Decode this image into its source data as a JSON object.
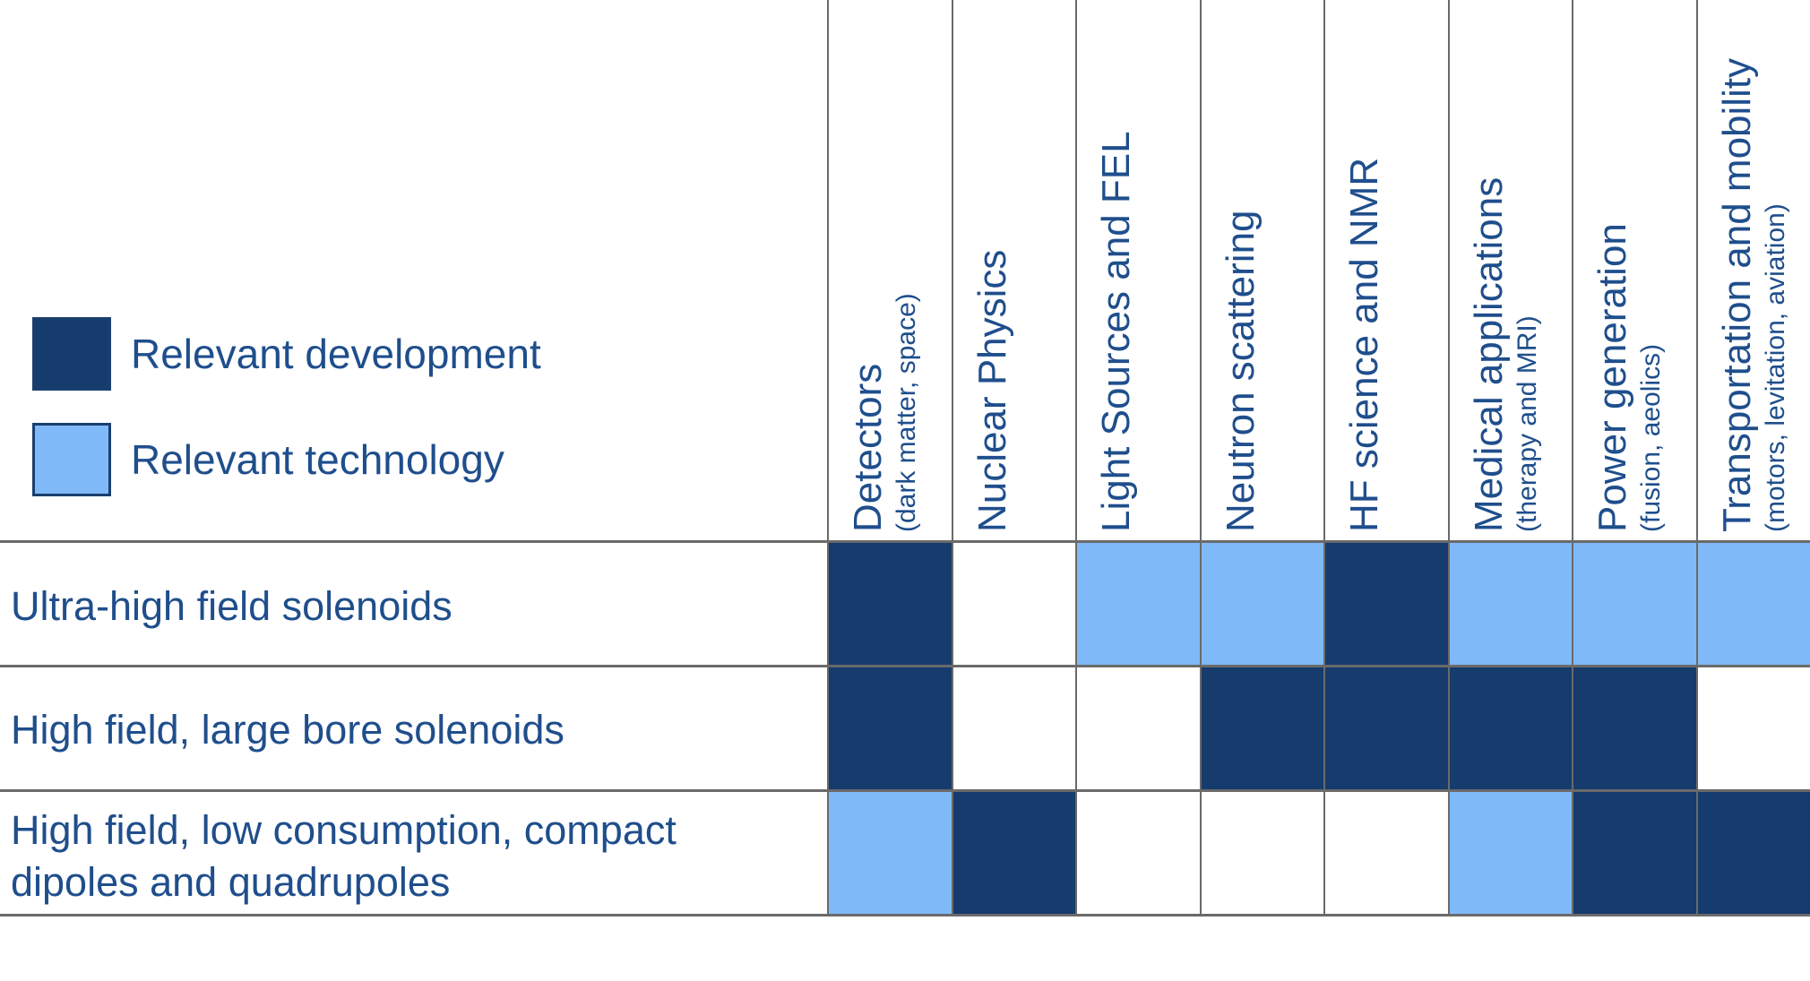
{
  "legend": [
    {
      "label": "Relevant development",
      "color": "#163b6d"
    },
    {
      "label": "Relevant technology",
      "color": "#80b9f8"
    }
  ],
  "columns": [
    {
      "title": "Detectors",
      "subtitle": "(dark matter, space)"
    },
    {
      "title": "Nuclear Physics",
      "subtitle": ""
    },
    {
      "title": "Light Sources and FEL",
      "subtitle": ""
    },
    {
      "title": "Neutron scattering",
      "subtitle": ""
    },
    {
      "title": "HF science and NMR",
      "subtitle": ""
    },
    {
      "title": "Medical applications",
      "subtitle": "(therapy and MRI)"
    },
    {
      "title": "Power generation",
      "subtitle": "(fusion, aeolics)"
    },
    {
      "title": "Transportation and mobility",
      "subtitle": "(motors, levitation, aviation)"
    }
  ],
  "rows": [
    {
      "label": "Ultra-high field solenoids",
      "cells": [
        "development",
        "none",
        "technology",
        "technology",
        "development",
        "technology",
        "technology",
        "technology"
      ]
    },
    {
      "label": "High field, large bore solenoids",
      "cells": [
        "development",
        "none",
        "none",
        "development",
        "development",
        "development",
        "development",
        "none"
      ]
    },
    {
      "label": "High field, low consumption, compact dipoles and quadrupoles",
      "cells": [
        "technology",
        "development",
        "none",
        "none",
        "none",
        "technology",
        "development",
        "development"
      ]
    }
  ],
  "colors": {
    "development": "#163b6d",
    "technology": "#80b9f8",
    "text": "#1f4e8c",
    "grid": "#6a6a6a"
  }
}
